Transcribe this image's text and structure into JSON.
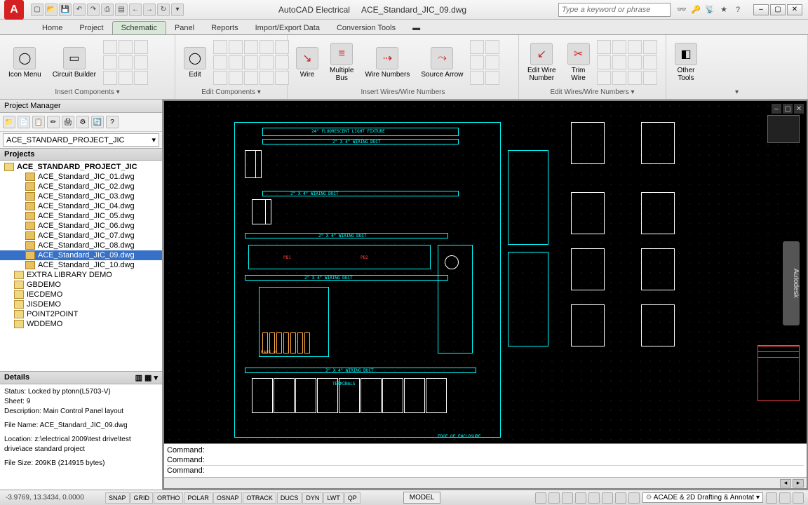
{
  "app": {
    "name": "AutoCAD Electrical",
    "document": "ACE_Standard_JIC_09.dwg",
    "search_placeholder": "Type a keyword or phrase"
  },
  "qat_icons": [
    "new",
    "open",
    "save",
    "undo",
    "redo",
    "print",
    "plot",
    "back",
    "fwd",
    "mru",
    "down"
  ],
  "tabs": [
    "Home",
    "Project",
    "Schematic",
    "Panel",
    "Reports",
    "Import/Export Data",
    "Conversion Tools"
  ],
  "active_tab": "Schematic",
  "ribbon": {
    "groups": [
      {
        "title": "Insert Components ▾",
        "items": [
          {
            "label": "Icon Menu",
            "icon": "◯"
          },
          {
            "label": "Circuit Builder",
            "icon": "▭"
          }
        ],
        "smallgrid": 9
      },
      {
        "title": "Edit Components ▾",
        "items": [
          {
            "label": "Edit",
            "icon": "◯"
          }
        ],
        "smallgrid": 15
      },
      {
        "title": "Insert Wires/Wire Numbers",
        "items": [
          {
            "label": "Wire",
            "icon": "↘"
          },
          {
            "label": "Multiple\nBus",
            "icon": "≡"
          },
          {
            "label": "Wire Numbers",
            "icon": "⇢"
          },
          {
            "label": "Source Arrow",
            "icon": "⤳"
          }
        ],
        "smallgrid": 6
      },
      {
        "title": "Edit Wires/Wire Numbers ▾",
        "items": [
          {
            "label": "Edit Wire\nNumber",
            "icon": "↙"
          },
          {
            "label": "Trim\nWire",
            "icon": "✂"
          }
        ],
        "smallgrid": 12
      },
      {
        "title": "",
        "items": [
          {
            "label": "Other\nTools",
            "icon": "◧"
          }
        ],
        "smallgrid": 0
      }
    ]
  },
  "project_manager": {
    "title": "Project Manager",
    "dropdown": "ACE_STANDARD_PROJECT_JIC",
    "projects_header": "Projects",
    "root": "ACE_STANDARD_PROJECT_JIC",
    "files": [
      "ACE_Standard_JIC_01.dwg",
      "ACE_Standard_JIC_02.dwg",
      "ACE_Standard_JIC_03.dwg",
      "ACE_Standard_JIC_04.dwg",
      "ACE_Standard_JIC_05.dwg",
      "ACE_Standard_JIC_06.dwg",
      "ACE_Standard_JIC_07.dwg",
      "ACE_Standard_JIC_08.dwg",
      "ACE_Standard_JIC_09.dwg",
      "ACE_Standard_JIC_10.dwg"
    ],
    "selected_file": "ACE_Standard_JIC_09.dwg",
    "folders": [
      "EXTRA LIBRARY DEMO",
      "GBDEMO",
      "IECDEMO",
      "JISDEMO",
      "POINT2POINT",
      "WDDEMO"
    ],
    "details_header": "Details",
    "details": {
      "status": "Status: Locked by ptonn(L5703-V)",
      "sheet": "Sheet: 9",
      "description": "Description: Main Control Panel layout",
      "filename": "File Name: ACE_Standard_JIC_09.dwg",
      "location": "Location: z:\\electrical 2009\\test drive\\test drive\\ace standard project",
      "filesize": "File Size: 209KB (214915 bytes)"
    }
  },
  "canvas": {
    "labels": {
      "fixture": "24\" FLUORESCENT LIGHT FIXTURE",
      "wiring_duct_1": "2\" X 4\" WIRING DUCT",
      "wiring_duct_2": "2\" X 4\" WIRING DUCT",
      "wiring_duct_3": "2\" X 4\" WIRING DUCT",
      "wiring_duct_4": "2\" X 4\" WIRING DUCT",
      "wiring_duct_5": "3\" X 4\" WIRING DUCT",
      "terminals": "TERMINALS",
      "edge": "EDGE OF ENCLOSURE",
      "rack": "RACK 0",
      "pb1": "PB1",
      "pb2": "PB2"
    },
    "autodesk": "Autodesk"
  },
  "command": {
    "prompt1": "Command:",
    "prompt2": "Command:",
    "prompt3": "Command:"
  },
  "statusbar": {
    "coords": "-3.9769, 13.3434, 0.0000",
    "toggles": [
      "SNAP",
      "GRID",
      "ORTHO",
      "POLAR",
      "OSNAP",
      "OTRACK",
      "DUCS",
      "DYN",
      "LWT",
      "QP"
    ],
    "model": "MODEL",
    "workspace": "ACADE & 2D Drafting & Annotat"
  },
  "colors": {
    "accent": "#3670c7",
    "canvas_bg": "#000000",
    "cyan": "#00ffff",
    "red": "#ff4444"
  }
}
